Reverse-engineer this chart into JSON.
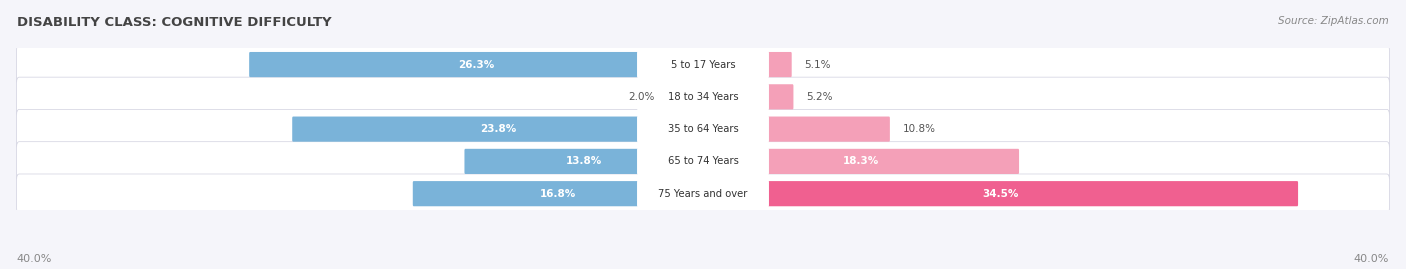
{
  "title": "DISABILITY CLASS: COGNITIVE DIFFICULTY",
  "source": "Source: ZipAtlas.com",
  "categories": [
    "5 to 17 Years",
    "18 to 34 Years",
    "35 to 64 Years",
    "65 to 74 Years",
    "75 Years and over"
  ],
  "male_values": [
    26.3,
    2.0,
    23.8,
    13.8,
    16.8
  ],
  "female_values": [
    5.1,
    5.2,
    10.8,
    18.3,
    34.5
  ],
  "max_val": 40.0,
  "male_color": "#7ab3d9",
  "female_color_small": "#f4a0b8",
  "female_color_large": "#f06090",
  "female_threshold": 20.0,
  "bg_color": "#f5f5fa",
  "row_bg_color": "#ebebf2",
  "row_bg_white": "#f9f9fc",
  "title_color": "#444444",
  "label_color": "#555555",
  "source_color": "#888888",
  "axis_label_color": "#888888",
  "figsize": [
    14.06,
    2.69
  ],
  "dpi": 100
}
